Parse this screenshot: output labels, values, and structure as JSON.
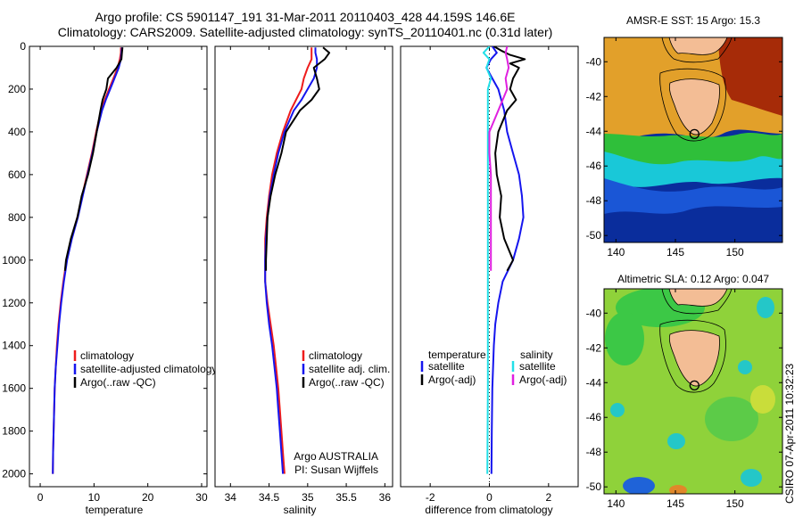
{
  "title": {
    "line1": "Argo profile: CS 5901147_191 31-Mar-2011 20110403_428 44.159S 146.6E",
    "line2": "Climatology: CARS2009. Satellite-adjusted climatology: synTS_20110401.nc (0.31d later)"
  },
  "colors": {
    "climatology": "#ee1c1c",
    "satellite": "#1515ee",
    "argo": "#000000",
    "satellite_salinity": "#22e0e8",
    "argo_adj_salinity": "#e020e0"
  },
  "stamp": "CSIRO 07-Apr-2011 10:32:23",
  "chart_data": [
    {
      "type": "line",
      "ylabel": "",
      "xlabel": "temperature",
      "xlim": [
        -2,
        31
      ],
      "ylim": [
        2060,
        0
      ],
      "y_reversed": true,
      "xticks": [
        0,
        10,
        20,
        30
      ],
      "yticks": [
        0,
        200,
        400,
        600,
        800,
        1000,
        1200,
        1400,
        1600,
        1800,
        2000
      ],
      "legend": [
        "climatology",
        "satellite-adjusted climatology",
        "Argo(..raw -QC)"
      ],
      "legend_loc": "lower-right",
      "series": [
        {
          "name": "climatology",
          "color": "#ee1c1c",
          "y": [
            5,
            30,
            60,
            100,
            150,
            200,
            250,
            300,
            400,
            500,
            600,
            700,
            800,
            900,
            1000,
            1100,
            1200,
            1300,
            1400,
            1500,
            1600,
            1700,
            1800,
            1900,
            2000
          ],
          "x": [
            15.0,
            15.0,
            14.8,
            14.4,
            13.6,
            12.8,
            12.0,
            11.3,
            10.4,
            9.6,
            8.7,
            7.8,
            6.9,
            5.8,
            4.9,
            4.3,
            3.8,
            3.4,
            3.1,
            2.9,
            2.7,
            2.6,
            2.5,
            2.4,
            2.35
          ]
        },
        {
          "name": "satellite-adjusted climatology",
          "color": "#1515ee",
          "y": [
            5,
            30,
            60,
            100,
            150,
            200,
            250,
            300,
            400,
            500,
            600,
            700,
            800,
            900,
            1000,
            1100,
            1200,
            1300,
            1400,
            1500,
            1600,
            1700,
            1800,
            1900,
            2000
          ],
          "x": [
            15.2,
            15.1,
            15.0,
            14.6,
            13.8,
            13.0,
            12.2,
            11.5,
            10.5,
            9.7,
            8.8,
            7.9,
            7.0,
            5.9,
            5.0,
            4.4,
            3.9,
            3.5,
            3.2,
            2.9,
            2.7,
            2.6,
            2.5,
            2.4,
            2.35
          ]
        },
        {
          "name": "Argo(..raw -QC)",
          "color": "#000000",
          "y": [
            5,
            30,
            60,
            100,
            150,
            200,
            250,
            300,
            400,
            500,
            600,
            700,
            800,
            900,
            1000,
            1050
          ],
          "x": [
            15.3,
            15.2,
            15.1,
            14.2,
            12.6,
            12.3,
            11.6,
            11.2,
            10.5,
            9.8,
            8.9,
            7.7,
            6.9,
            5.7,
            4.8,
            4.6
          ]
        }
      ]
    },
    {
      "type": "line",
      "ylabel": "",
      "xlabel": "salinity",
      "xlim": [
        33.8,
        36.1
      ],
      "ylim": [
        2060,
        0
      ],
      "y_reversed": true,
      "xticks": [
        34,
        34.5,
        35,
        35.5,
        36
      ],
      "yticks": [],
      "legend": [
        "climatology",
        "satellite adj. clim.",
        "Argo(..raw -QC)"
      ],
      "legend_loc": "lower-right",
      "annotation": [
        "Argo AUSTRALIA",
        "PI: Susan Wijffels"
      ],
      "series": [
        {
          "name": "climatology",
          "color": "#ee1c1c",
          "y": [
            5,
            30,
            60,
            100,
            150,
            200,
            250,
            300,
            400,
            500,
            600,
            700,
            800,
            900,
            1000,
            1100,
            1200,
            1300,
            1400,
            1500,
            1600,
            1700,
            1800,
            1900,
            2000
          ],
          "x": [
            35.05,
            35.05,
            35.05,
            35.0,
            34.95,
            34.92,
            34.85,
            34.78,
            34.68,
            34.6,
            34.54,
            34.5,
            34.47,
            34.45,
            34.45,
            34.45,
            34.48,
            34.52,
            34.56,
            34.59,
            34.62,
            34.64,
            34.66,
            34.68,
            34.7
          ]
        },
        {
          "name": "satellite adj. clim.",
          "color": "#1515ee",
          "y": [
            5,
            30,
            60,
            100,
            150,
            200,
            250,
            300,
            400,
            500,
            600,
            700,
            800,
            900,
            1000,
            1100,
            1200,
            1300,
            1400,
            1500,
            1600,
            1700,
            1800,
            1900,
            2000
          ],
          "x": [
            35.1,
            35.1,
            35.12,
            35.12,
            35.08,
            35.0,
            34.92,
            34.82,
            34.7,
            34.62,
            34.56,
            34.51,
            34.48,
            34.46,
            34.45,
            34.45,
            34.47,
            34.5,
            34.54,
            34.57,
            34.6,
            34.62,
            34.64,
            34.66,
            34.68
          ]
        },
        {
          "name": "Argo(..raw -QC)",
          "color": "#000000",
          "y": [
            5,
            30,
            60,
            100,
            150,
            200,
            250,
            300,
            400,
            500,
            600,
            700,
            800,
            900,
            1000,
            1050
          ],
          "x": [
            35.2,
            35.28,
            35.22,
            35.08,
            35.12,
            35.15,
            35.05,
            34.9,
            34.72,
            34.66,
            34.58,
            34.52,
            34.48,
            34.47,
            34.46,
            34.46
          ]
        }
      ]
    },
    {
      "type": "line",
      "ylabel": "",
      "xlabel": "difference from climatology",
      "xlim": [
        -3,
        3
      ],
      "ylim": [
        2060,
        0
      ],
      "y_reversed": true,
      "xticks": [
        -2,
        0,
        2
      ],
      "yticks": [],
      "legend": [
        "temperature",
        "satellite",
        "Argo(-adj)",
        "salinity",
        "satellite",
        "Argo(-adj)"
      ],
      "legend_loc": "lower-center",
      "series": [
        {
          "name": "temperature satellite",
          "color": "#1515ee",
          "y": [
            0,
            30,
            60,
            100,
            150,
            200,
            300,
            400,
            500,
            600,
            700,
            800,
            900,
            1000,
            1100,
            1200,
            1300,
            1400,
            1600,
            1800,
            2000
          ],
          "x": [
            0.1,
            0.25,
            0.05,
            -0.1,
            0.1,
            0.3,
            0.5,
            0.6,
            0.8,
            1.0,
            1.1,
            1.15,
            1.0,
            0.8,
            0.45,
            0.3,
            0.2,
            0.15,
            0.1,
            0.08,
            0.07
          ]
        },
        {
          "name": "temperature Argo(-adj)",
          "color": "#000000",
          "y": [
            0,
            20,
            40,
            60,
            80,
            100,
            150,
            200,
            250,
            300,
            400,
            500,
            600,
            700,
            800,
            900,
            1000,
            1050
          ],
          "x": [
            0.15,
            0.4,
            0.7,
            1.2,
            0.7,
            1.0,
            0.8,
            0.7,
            0.9,
            0.6,
            0.3,
            0.2,
            0.25,
            0.4,
            0.35,
            0.5,
            0.8,
            0.6
          ]
        },
        {
          "name": "salinity satellite",
          "color": "#22e0e8",
          "y": [
            0,
            30,
            60,
            100,
            150,
            200,
            300,
            400,
            500,
            600,
            800,
            1000,
            1200,
            1400,
            1600,
            1800,
            2000
          ],
          "x": [
            0.0,
            -0.2,
            0.0,
            -0.1,
            0.05,
            -0.05,
            -0.05,
            -0.05,
            -0.05,
            -0.05,
            -0.05,
            -0.05,
            -0.05,
            -0.05,
            -0.05,
            -0.06,
            -0.07
          ]
        },
        {
          "name": "salinity Argo(-adj)",
          "color": "#e020e0",
          "y": [
            0,
            30,
            60,
            100,
            150,
            200,
            300,
            400,
            500,
            600,
            700,
            800,
            900,
            1000,
            1050
          ],
          "x": [
            0.6,
            0.55,
            0.6,
            0.65,
            0.55,
            0.6,
            0.3,
            0.0,
            0.0,
            0.05,
            0.05,
            0.05,
            0.05,
            0.05,
            0.05
          ]
        }
      ]
    },
    {
      "type": "heatmap",
      "title": "AMSR-E SST: 15 Argo: 15.3",
      "xlim": [
        139,
        154
      ],
      "ylim": [
        -50.4,
        -38.6
      ],
      "xticks": [
        140,
        145,
        150
      ],
      "yticks": [
        -40,
        -42,
        -44,
        -46,
        -48,
        -50
      ],
      "marker": {
        "lon": 146.6,
        "lat": -44.159
      }
    },
    {
      "type": "heatmap",
      "title": "Altimetric SLA: 0.12 Argo: 0.047",
      "xlim": [
        139,
        154
      ],
      "ylim": [
        -50.4,
        -38.6
      ],
      "xticks": [
        140,
        145,
        150
      ],
      "yticks": [
        -40,
        -42,
        -44,
        -46,
        -48,
        -50
      ],
      "marker": {
        "lon": 146.6,
        "lat": -44.159
      }
    }
  ]
}
